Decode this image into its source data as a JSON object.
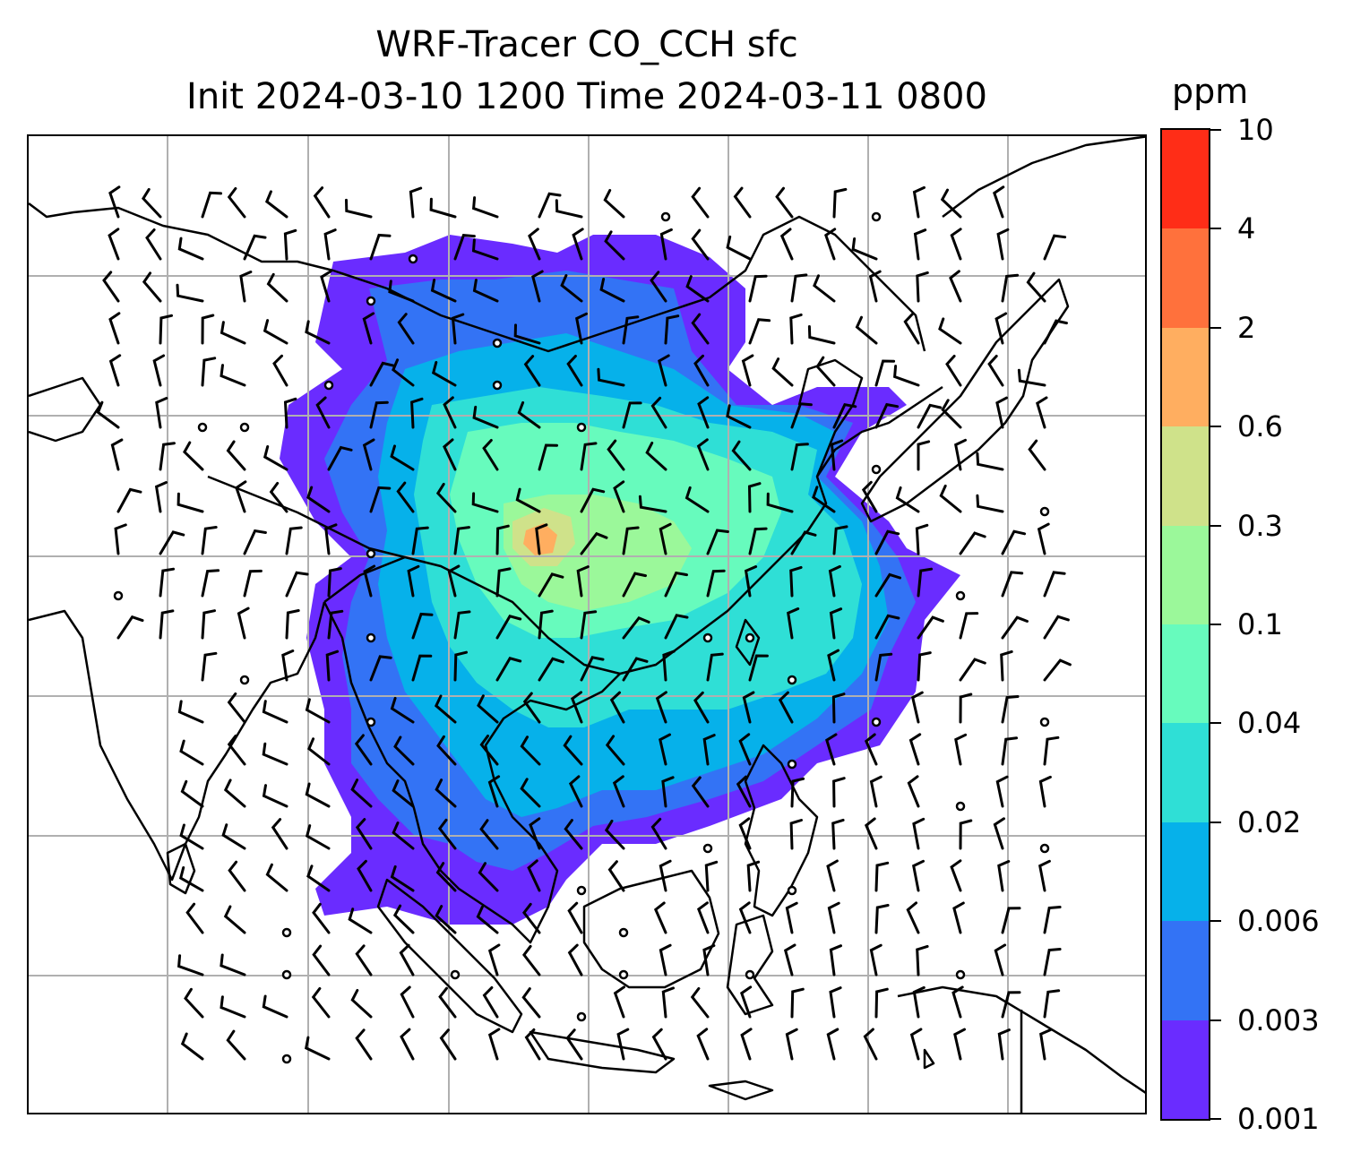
{
  "title": {
    "line1": "WRF-Tracer CO_CCH sfc",
    "line2": "Init 2024-03-10 1200 Time 2024-03-11 0800"
  },
  "colorbar": {
    "unit": "ppm",
    "levels": [
      "0.001",
      "0.003",
      "0.006",
      "0.02",
      "0.04",
      "0.1",
      "0.3",
      "0.6",
      "2",
      "4",
      "10"
    ],
    "colors": [
      "#6a2cff",
      "#3373f5",
      "#06b1ea",
      "#2fdfd6",
      "#67fbbd",
      "#9bf89a",
      "#cfe28a",
      "#ffae60",
      "#ff713c",
      "#ff2d17"
    ]
  },
  "map": {
    "ocean_color": "#ffffff",
    "coastline_color": "#000000",
    "gridline_color": "#b0b0b0",
    "wind_barb_color": "#000000",
    "calm_marker": "circle"
  }
}
